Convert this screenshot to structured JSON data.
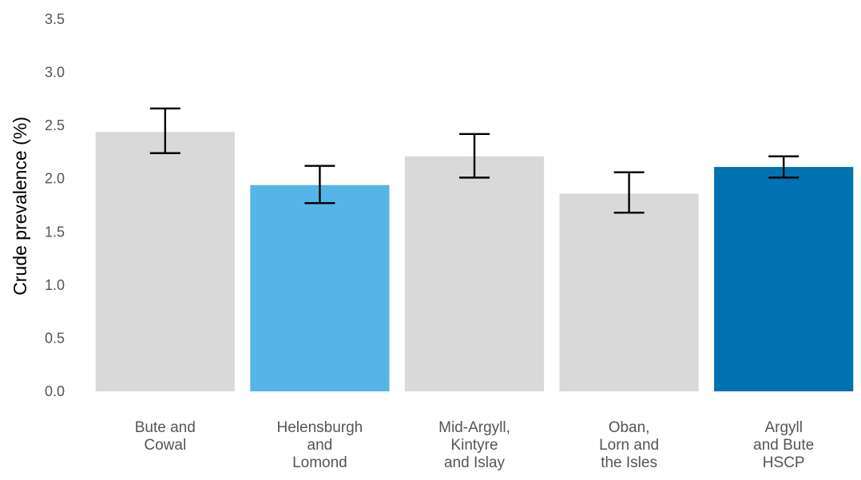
{
  "chart_data": {
    "type": "bar",
    "title": "",
    "xlabel": "",
    "ylabel": "Crude prevalence (%)",
    "ylim": [
      0,
      3.5
    ],
    "yticks": [
      "0.0",
      "0.5",
      "1.0",
      "1.5",
      "2.0",
      "2.5",
      "3.0",
      "3.5"
    ],
    "grid": false,
    "legend": "none",
    "categories": [
      [
        "Bute and",
        "Cowal"
      ],
      [
        "Helensburgh",
        "and",
        "Lomond"
      ],
      [
        "Mid-Argyll,",
        "Kintyre",
        "and Islay"
      ],
      [
        "Oban,",
        "Lorn and",
        "the Isles"
      ],
      [
        "Argyll",
        "and Bute",
        "HSCP"
      ]
    ],
    "values": [
      2.44,
      1.94,
      2.21,
      1.86,
      2.11
    ],
    "error_low": [
      2.24,
      1.77,
      2.01,
      1.68,
      2.01
    ],
    "error_high": [
      2.66,
      2.12,
      2.42,
      2.06,
      2.21
    ],
    "colors": [
      "#d9d9d9",
      "#56b4e9",
      "#d9d9d9",
      "#d9d9d9",
      "#0072b2"
    ],
    "error_bar_color": "#000000"
  }
}
